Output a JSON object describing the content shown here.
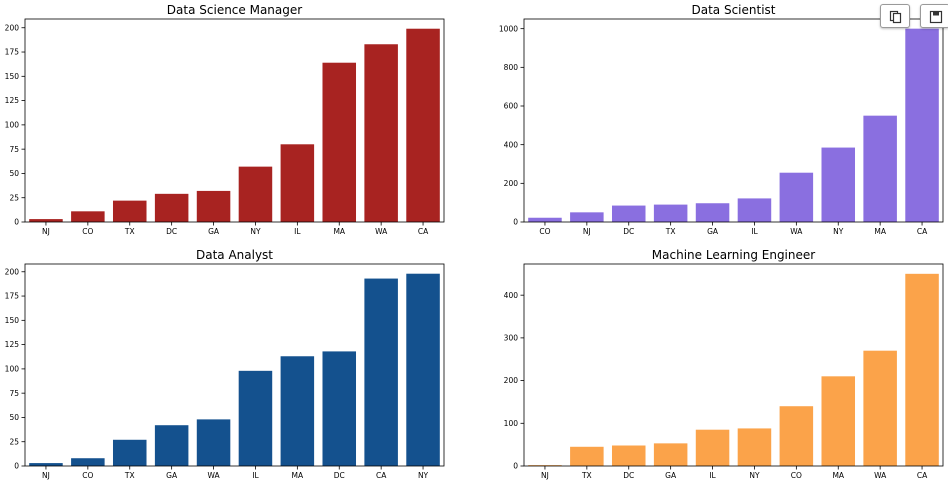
{
  "chart_data": [
    {
      "type": "bar",
      "title": "Data Science Manager",
      "categories": [
        "NJ",
        "CO",
        "TX",
        "DC",
        "GA",
        "NY",
        "IL",
        "MA",
        "WA",
        "CA"
      ],
      "values": [
        3,
        11,
        22,
        29,
        32,
        57,
        80,
        164,
        183,
        199
      ],
      "ylim": [
        0,
        209
      ],
      "yticks": [
        0,
        25,
        50,
        75,
        100,
        125,
        150,
        175,
        200
      ],
      "color": "#a82321"
    },
    {
      "type": "bar",
      "title": "Data Scientist",
      "categories": [
        "CO",
        "NJ",
        "DC",
        "TX",
        "GA",
        "IL",
        "WA",
        "NY",
        "MA",
        "CA"
      ],
      "values": [
        22,
        50,
        85,
        90,
        97,
        122,
        255,
        385,
        550,
        1000
      ],
      "ylim": [
        0,
        1050
      ],
      "yticks": [
        0,
        200,
        400,
        600,
        800,
        1000
      ],
      "color": "#8a6fe0"
    },
    {
      "type": "bar",
      "title": "Data Analyst",
      "categories": [
        "NJ",
        "CO",
        "TX",
        "GA",
        "WA",
        "IL",
        "MA",
        "DC",
        "CA",
        "NY"
      ],
      "values": [
        3,
        8,
        27,
        42,
        48,
        98,
        113,
        118,
        193,
        198
      ],
      "ylim": [
        0,
        208
      ],
      "yticks": [
        0,
        25,
        50,
        75,
        100,
        125,
        150,
        175,
        200
      ],
      "color": "#14518e"
    },
    {
      "type": "bar",
      "title": "Machine Learning Engineer",
      "categories": [
        "NJ",
        "TX",
        "DC",
        "GA",
        "IL",
        "NY",
        "CO",
        "MA",
        "WA",
        "CA"
      ],
      "values": [
        2,
        45,
        48,
        53,
        85,
        88,
        140,
        210,
        270,
        450
      ],
      "ylim": [
        0,
        473
      ],
      "yticks": [
        0,
        100,
        200,
        300,
        400
      ],
      "color": "#fba34a"
    }
  ],
  "toolbar": {
    "copy_icon": "copy-icon",
    "save_icon": "save-icon"
  }
}
